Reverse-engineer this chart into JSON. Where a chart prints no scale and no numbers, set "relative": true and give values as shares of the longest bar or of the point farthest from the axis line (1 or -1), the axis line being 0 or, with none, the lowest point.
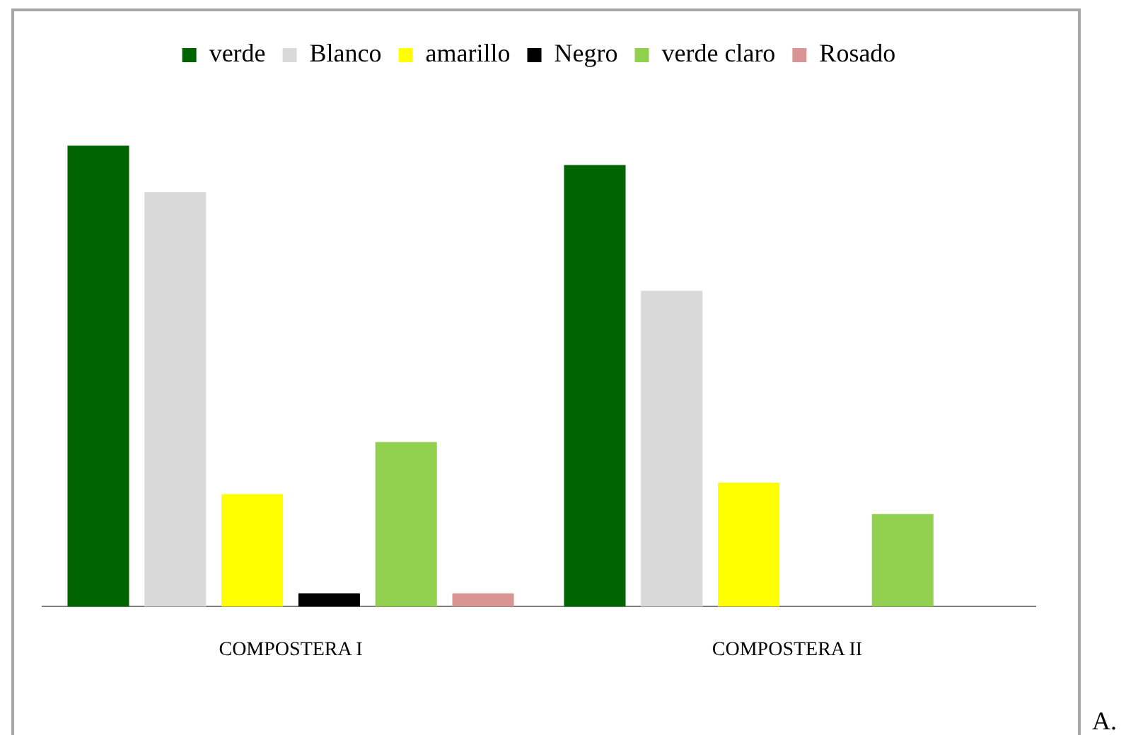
{
  "chart_data": {
    "type": "bar",
    "relative": true,
    "legend": "top",
    "categories": [
      "COMPOSTERA I",
      "COMPOSTERA II"
    ],
    "series": [
      {
        "name": "verde",
        "color": "#006400",
        "values": [
          1,
          0.958
        ]
      },
      {
        "name": "Blanco",
        "color": "#d9d9d9",
        "values": [
          0.899,
          0.685
        ]
      },
      {
        "name": "amarillo",
        "color": "#ffff00",
        "values": [
          0.244,
          0.269
        ]
      },
      {
        "name": "Negro",
        "color": "#000000",
        "values": [
          0.029,
          0
        ]
      },
      {
        "name": "verde claro",
        "color": "#92d050",
        "values": [
          0.357,
          0.201
        ]
      },
      {
        "name": "Rosado",
        "color": "#d99594",
        "values": [
          0.029,
          0
        ]
      }
    ],
    "annotations": [
      "A."
    ]
  }
}
